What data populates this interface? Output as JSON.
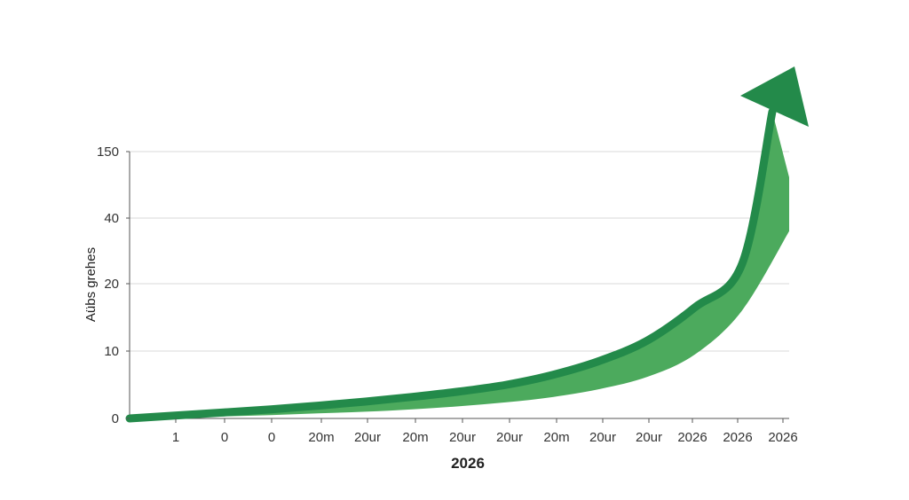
{
  "chart_data": {
    "type": "area",
    "title": "",
    "xlabel": "2026",
    "ylabel": "Aübs grehes",
    "y_ticks": [
      "0",
      "10",
      "20",
      "40",
      "150"
    ],
    "x_ticks": [
      "1",
      "0",
      "0",
      "20m",
      "20ur",
      "20m",
      "20ur",
      "20ur",
      "20m",
      "20ur",
      "20ur",
      "2026",
      "2026",
      "2026"
    ],
    "grid": true,
    "legend": "none",
    "series": [
      {
        "values_upper": [
          0,
          0.45,
          0.9,
          1.35,
          1.9,
          2.5,
          3.2,
          4.0,
          5.0,
          6.5,
          8.6,
          11.6,
          16.5,
          26,
          150
        ],
        "values_lower": [
          0,
          0.15,
          0.3,
          0.5,
          0.75,
          1.0,
          1.35,
          1.8,
          2.4,
          3.2,
          4.4,
          6.2,
          9.5,
          16,
          36
        ]
      }
    ],
    "colors": {
      "fill": "#4caa5d",
      "edge": "#238a4a",
      "arrow": "#238a4a",
      "grid": "#d9d9d9",
      "axis": "#555555"
    }
  }
}
